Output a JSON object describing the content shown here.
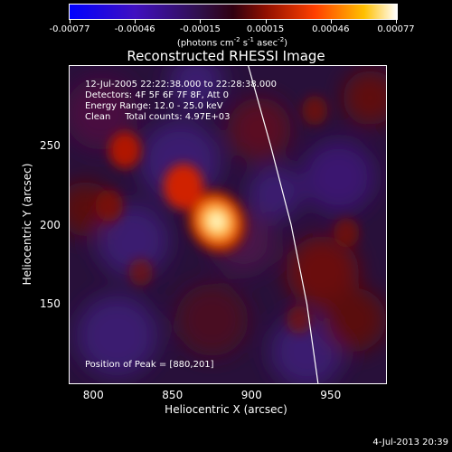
{
  "colorbar": {
    "ticks": [
      "-0.00077",
      "-0.00046",
      "-0.00015",
      "0.00015",
      "0.00046",
      "0.00077"
    ],
    "units_prefix": "(photons cm",
    "units_exp1": "-2",
    "units_mid": " s",
    "units_exp2": "-1",
    "units_mid2": " asec",
    "units_exp3": "-2",
    "units_suffix": ")"
  },
  "title": "Reconstructed RHESSI Image",
  "info": {
    "time_range": "12-Jul-2005 22:22:38.000 to 22:28:38.000",
    "detectors": "Detectors: 4F 5F 6F 7F 8F, Att 0",
    "energy_range": "Energy Range: 12.0 - 25.0 keV",
    "clean": "Clean     Total counts: 4.97E+03",
    "peak": "Position of Peak = [880,201]"
  },
  "axes": {
    "xlabel": "Heliocentric X (arcsec)",
    "ylabel": "Heliocentric Y (arcsec)",
    "xticks": [
      "800",
      "850",
      "900",
      "950"
    ],
    "yticks": [
      "250",
      "200",
      "150"
    ]
  },
  "timestamp": "4-Jul-2013 20:39",
  "chart_data": {
    "type": "heatmap",
    "title": "Reconstructed RHESSI Image",
    "xlabel": "Heliocentric X (arcsec)",
    "ylabel": "Heliocentric Y (arcsec)",
    "xlim": [
      785,
      985
    ],
    "ylim": [
      100,
      300
    ],
    "color_range": [
      -0.00077,
      0.00077
    ],
    "peak_position": [
      880,
      201
    ],
    "source_blobs": [
      {
        "x": 878,
        "y": 202,
        "value": 0.00077
      },
      {
        "x": 857,
        "y": 224,
        "value": 0.00035
      },
      {
        "x": 820,
        "y": 247,
        "value": 0.0002
      },
      {
        "x": 810,
        "y": 212,
        "value": 0.00012
      },
      {
        "x": 940,
        "y": 272,
        "value": 8e-05
      },
      {
        "x": 960,
        "y": 195,
        "value": 8e-05
      },
      {
        "x": 930,
        "y": 140,
        "value": 6e-05
      },
      {
        "x": 830,
        "y": 170,
        "value": 5e-05
      }
    ],
    "limb_curve": [
      [
        898,
        300
      ],
      [
        912,
        250
      ],
      [
        925,
        200
      ],
      [
        935,
        150
      ],
      [
        942,
        100
      ]
    ]
  }
}
